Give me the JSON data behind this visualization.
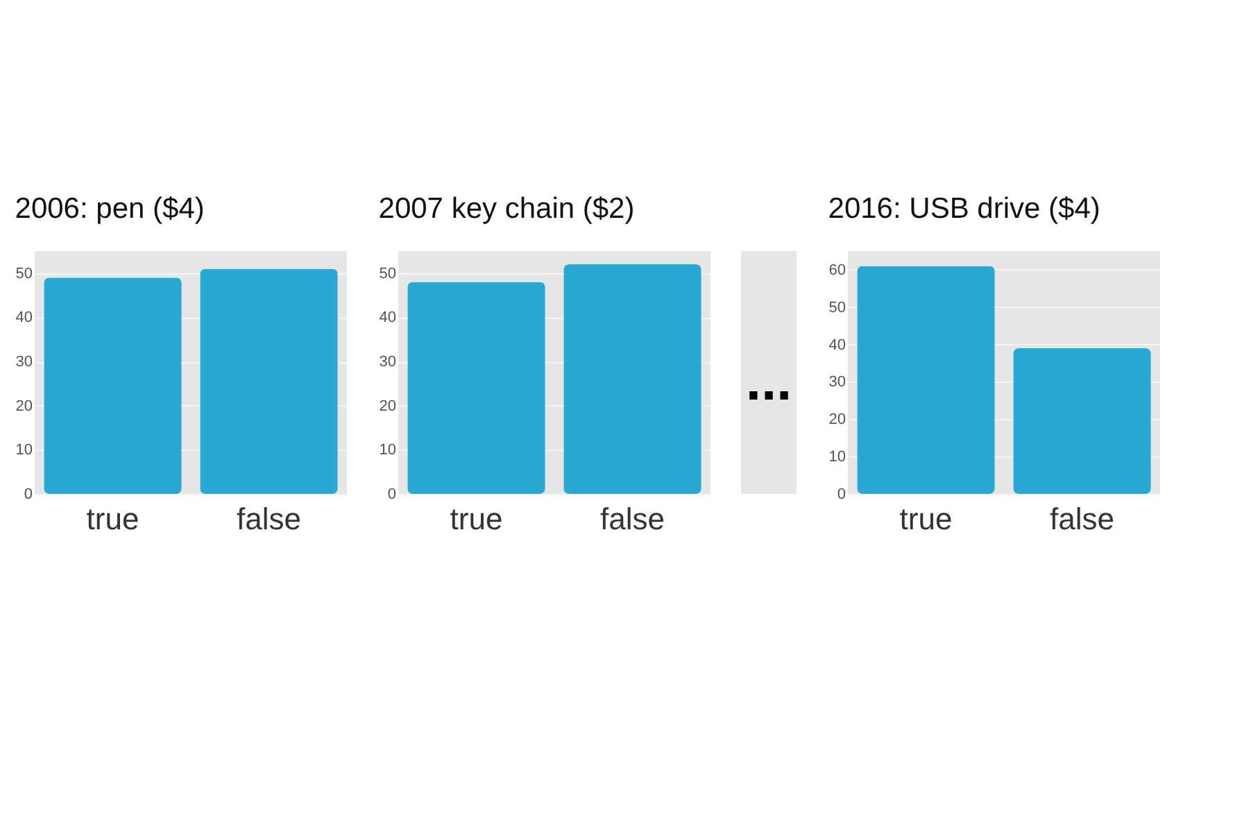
{
  "chart_data": [
    {
      "type": "bar",
      "title": "2006: pen ($4)",
      "categories": [
        "true",
        "false"
      ],
      "values": [
        49,
        51
      ],
      "color": "#29a8d4",
      "ylim": [
        0,
        55
      ],
      "yticks": [
        0,
        10,
        20,
        30,
        40,
        50
      ],
      "grid": "y"
    },
    {
      "type": "bar",
      "title": "2007 key chain ($2)",
      "categories": [
        "true",
        "false"
      ],
      "values": [
        48,
        52
      ],
      "color": "#29a8d4",
      "ylim": [
        0,
        55
      ],
      "yticks": [
        0,
        10,
        20,
        30,
        40,
        50
      ],
      "grid": "y",
      "annotations": [
        "..."
      ]
    },
    {
      "type": "bar",
      "title": "2016: USB drive ($4)",
      "categories": [
        "true",
        "false"
      ],
      "values": [
        61,
        39
      ],
      "color": "#29a8d4",
      "ylim": [
        0,
        65
      ],
      "yticks": [
        0,
        10,
        20,
        30,
        40,
        50,
        60
      ],
      "grid": "y"
    }
  ]
}
